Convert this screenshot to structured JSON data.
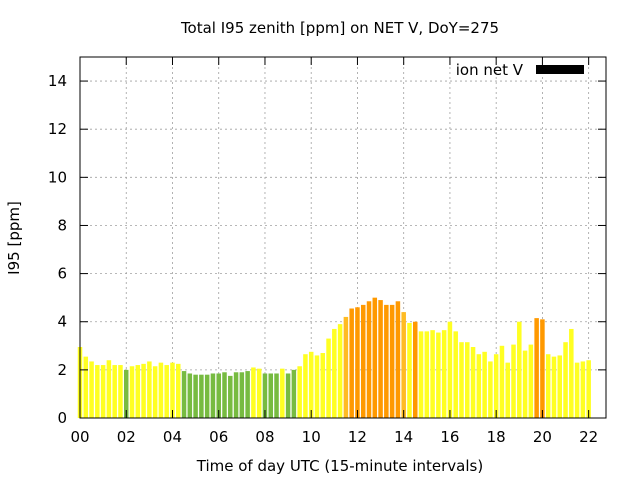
{
  "chart_data": {
    "type": "bar",
    "title": "Total I95 zenith [ppm] on NET V, DoY=275",
    "xlabel": "Time of day UTC (15-minute intervals)",
    "ylabel": "I95 [ppm]",
    "legend": {
      "label": "ion net V",
      "color": "#000000",
      "placement": "top-right"
    },
    "grid": true,
    "xlim": [
      0,
      22.75
    ],
    "ylim": [
      0,
      15
    ],
    "x_ticks": [
      0,
      2,
      4,
      6,
      8,
      10,
      12,
      14,
      16,
      18,
      20,
      22
    ],
    "x_tick_labels": [
      "00",
      "02",
      "04",
      "06",
      "08",
      "10",
      "12",
      "14",
      "16",
      "18",
      "20",
      "22"
    ],
    "y_ticks": [
      0,
      2,
      4,
      6,
      8,
      10,
      12,
      14
    ],
    "y_tick_labels": [
      "0",
      "2",
      "4",
      "6",
      "8",
      "10",
      "12",
      "14"
    ],
    "interval_hours": 0.25,
    "colors": {
      "green": "#77bb41",
      "yellow": "#ffff22",
      "amber": "#ffbb22",
      "orange": "#ff9900"
    },
    "values": [
      2.95,
      2.55,
      2.35,
      2.2,
      2.2,
      2.4,
      2.2,
      2.2,
      2.0,
      2.15,
      2.2,
      2.25,
      2.35,
      2.15,
      2.3,
      2.2,
      2.3,
      2.25,
      1.95,
      1.85,
      1.8,
      1.8,
      1.8,
      1.85,
      1.85,
      1.9,
      1.75,
      1.9,
      1.9,
      1.95,
      2.1,
      2.05,
      1.85,
      1.85,
      1.85,
      2.05,
      1.85,
      2.0,
      2.15,
      2.65,
      2.75,
      2.6,
      2.7,
      3.3,
      3.7,
      3.9,
      4.2,
      4.55,
      4.6,
      4.7,
      4.85,
      5.0,
      4.9,
      4.7,
      4.7,
      4.85,
      4.4,
      3.95,
      4.0,
      3.6,
      3.6,
      3.65,
      3.55,
      3.65,
      4.0,
      3.6,
      3.15,
      3.15,
      2.95,
      2.65,
      2.75,
      2.35,
      2.65,
      3.0,
      2.3,
      3.05,
      4.0,
      2.8,
      3.05,
      4.15,
      4.1,
      2.65,
      2.55,
      2.6,
      3.15,
      3.7,
      2.3,
      2.35,
      2.4
    ],
    "bar_colors": [
      "yellow",
      "yellow",
      "yellow",
      "yellow",
      "yellow",
      "yellow",
      "yellow",
      "yellow",
      "green",
      "yellow",
      "yellow",
      "yellow",
      "yellow",
      "yellow",
      "yellow",
      "yellow",
      "yellow",
      "yellow",
      "green",
      "green",
      "green",
      "green",
      "green",
      "green",
      "green",
      "green",
      "green",
      "green",
      "green",
      "green",
      "yellow",
      "yellow",
      "green",
      "green",
      "green",
      "yellow",
      "green",
      "green",
      "yellow",
      "yellow",
      "yellow",
      "yellow",
      "yellow",
      "yellow",
      "yellow",
      "yellow",
      "amber",
      "orange",
      "orange",
      "orange",
      "orange",
      "orange",
      "orange",
      "orange",
      "orange",
      "orange",
      "amber",
      "yellow",
      "orange",
      "yellow",
      "yellow",
      "yellow",
      "yellow",
      "yellow",
      "yellow",
      "yellow",
      "yellow",
      "yellow",
      "yellow",
      "yellow",
      "yellow",
      "yellow",
      "yellow",
      "yellow",
      "yellow",
      "yellow",
      "yellow",
      "yellow",
      "yellow",
      "orange",
      "orange",
      "yellow",
      "yellow",
      "yellow",
      "yellow",
      "yellow",
      "yellow",
      "yellow",
      "yellow"
    ]
  }
}
